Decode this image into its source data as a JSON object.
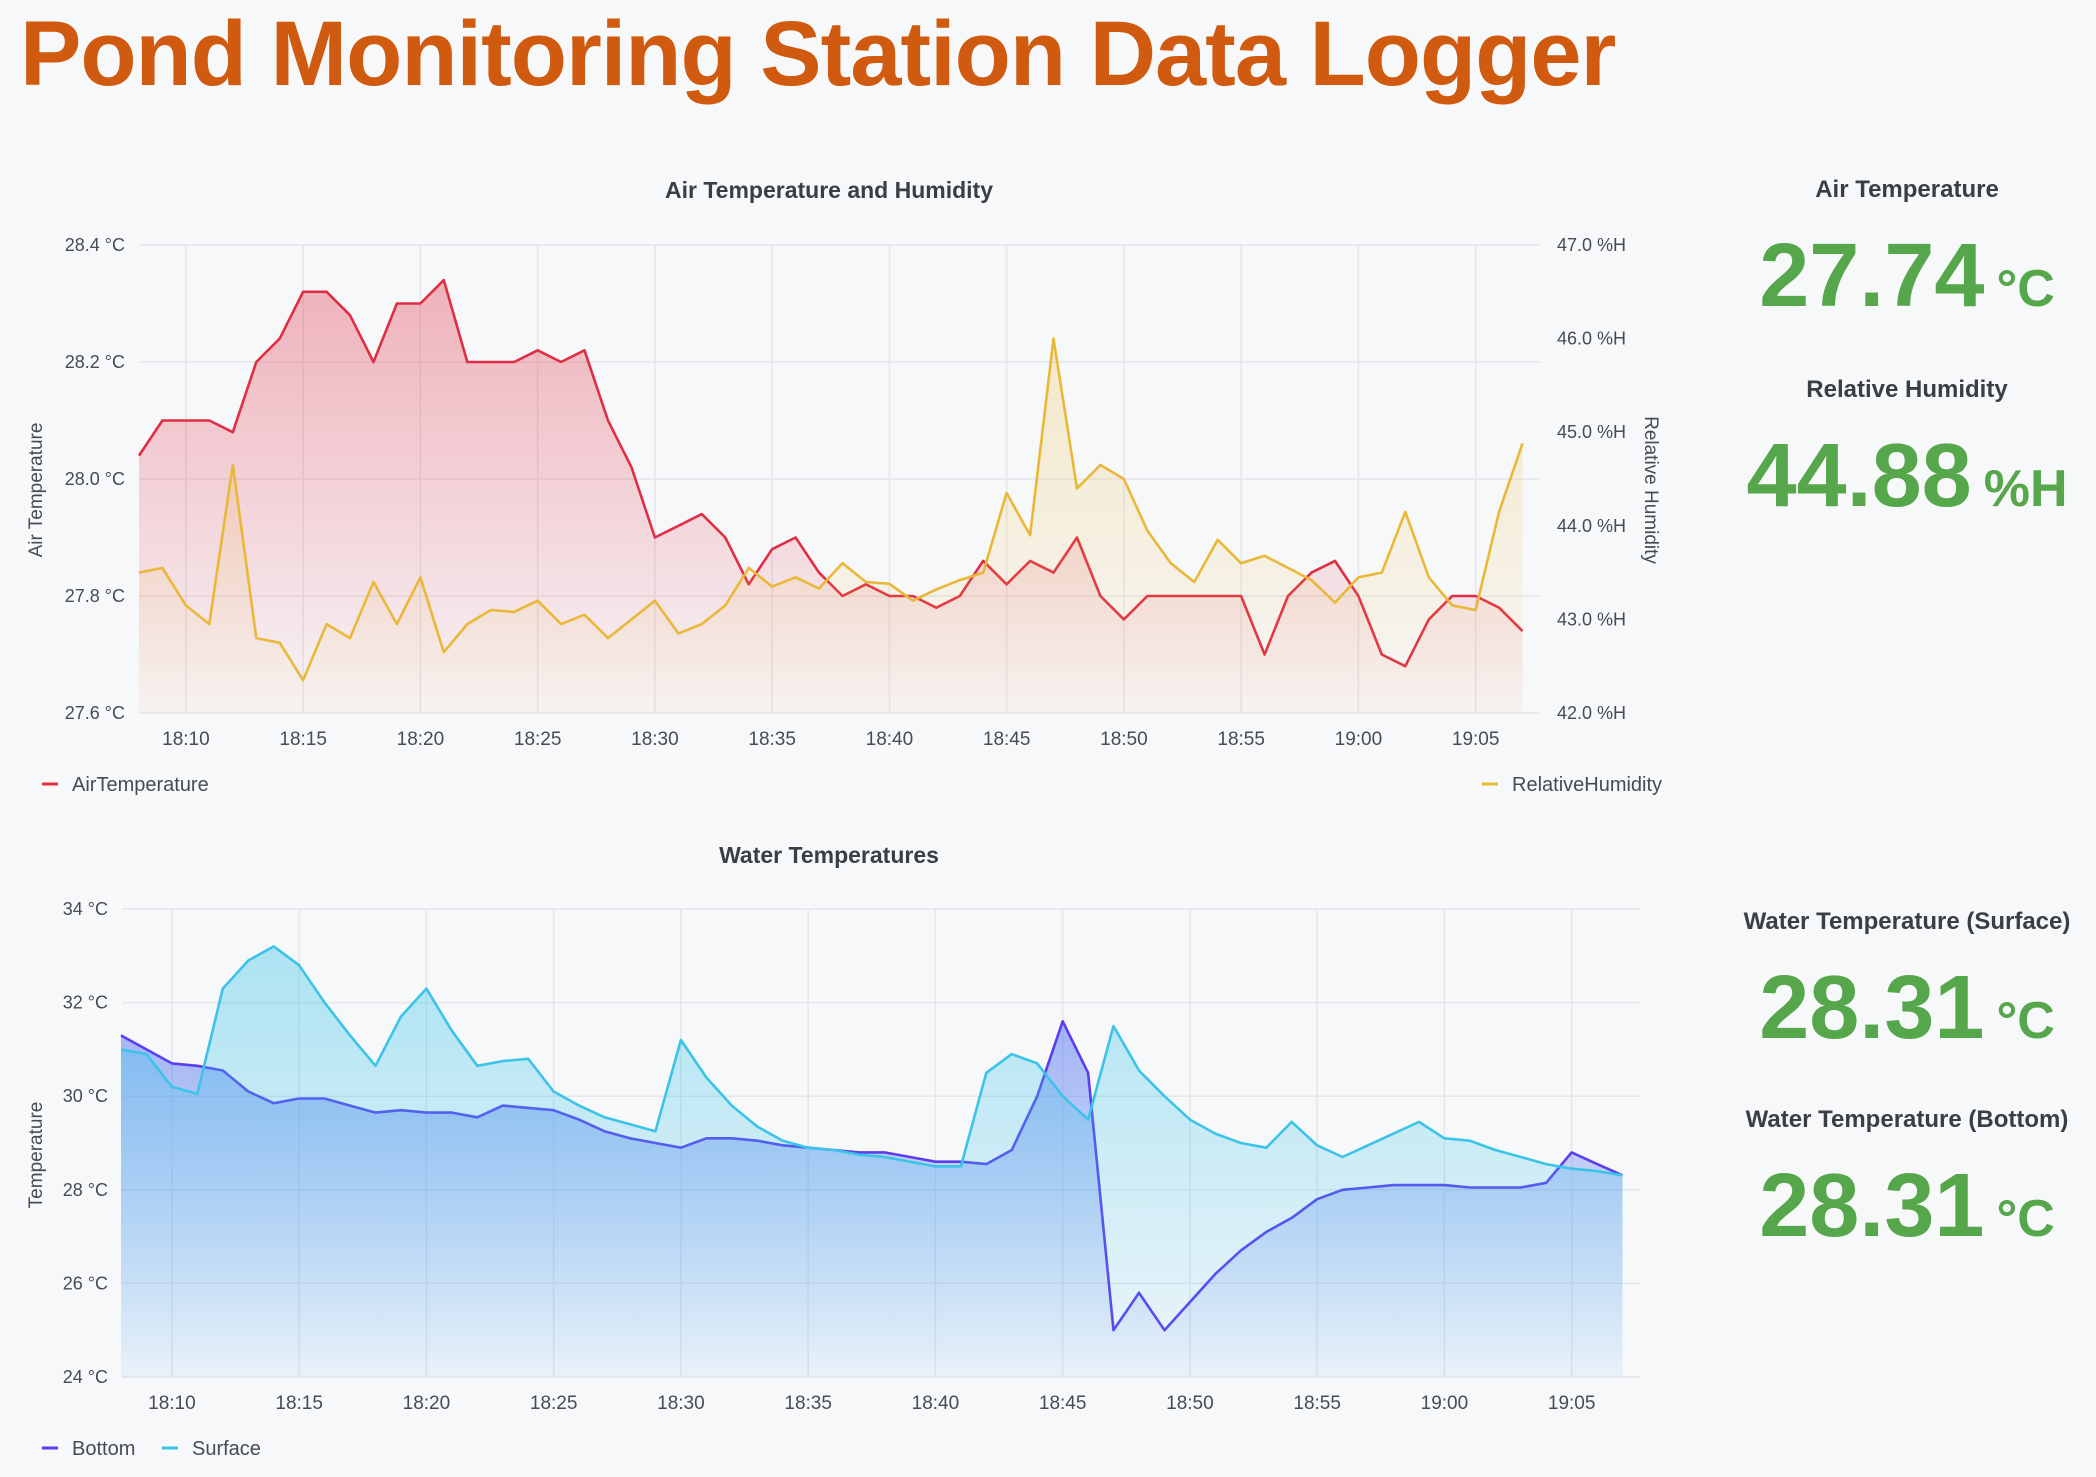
{
  "title": "Pond Monitoring Station Data Logger",
  "colors": {
    "air": "#e02f44",
    "humidity": "#eab839",
    "bottom": "#5a3ef0",
    "surface": "#3cc3e8",
    "stat": "#56a64b"
  },
  "stats": [
    {
      "title": "Air Temperature",
      "value": "27.74",
      "unit": "°C"
    },
    {
      "title": "Relative Humidity",
      "value": "44.88",
      "unit": "%H"
    },
    {
      "title": "Water Temperature (Surface)",
      "value": "28.31",
      "unit": "°C"
    },
    {
      "title": "Water Temperature (Bottom)",
      "value": "28.31",
      "unit": "°C"
    }
  ],
  "chart_data": [
    {
      "type": "line",
      "title": "Air Temperature and Humidity",
      "ylabel": "Air Temperature",
      "y2label": "Relative Humidity",
      "ylim": [
        27.6,
        28.4
      ],
      "y2lim": [
        42.0,
        47.0
      ],
      "yticks": [
        "28.4 °C",
        "28.2 °C",
        "28.0 °C",
        "27.8 °C",
        "27.6 °C"
      ],
      "y2ticks": [
        "47.0 %H",
        "46.0 %H",
        "45.0 %H",
        "44.0 %H",
        "43.0 %H",
        "42.0 %H"
      ],
      "xticks": [
        "18:10",
        "18:15",
        "18:20",
        "18:25",
        "18:30",
        "18:35",
        "18:40",
        "18:45",
        "18:50",
        "18:55",
        "19:00",
        "19:05"
      ],
      "x_start": "18:08",
      "x_step_min": 1,
      "grid": true,
      "series": [
        {
          "name": "AirTemperature",
          "axis": "left",
          "values": [
            28.04,
            28.1,
            28.1,
            28.1,
            28.08,
            28.2,
            28.24,
            28.32,
            28.32,
            28.28,
            28.2,
            28.3,
            28.3,
            28.34,
            28.2,
            28.2,
            28.2,
            28.22,
            28.2,
            28.22,
            28.1,
            28.02,
            27.9,
            27.92,
            27.94,
            27.9,
            27.82,
            27.88,
            27.9,
            27.84,
            27.8,
            27.82,
            27.8,
            27.8,
            27.78,
            27.8,
            27.86,
            27.82,
            27.86,
            27.84,
            27.9,
            27.8,
            27.76,
            27.8,
            27.8,
            27.8,
            27.8,
            27.8,
            27.7,
            27.8,
            27.84,
            27.86,
            27.8,
            27.7,
            27.68,
            27.76,
            27.8,
            27.8,
            27.78,
            27.74
          ]
        },
        {
          "name": "RelativeHumidity",
          "axis": "right",
          "values": [
            43.5,
            43.55,
            43.15,
            42.95,
            44.65,
            42.8,
            42.75,
            42.35,
            42.95,
            42.8,
            43.4,
            42.95,
            43.45,
            42.65,
            42.95,
            43.1,
            43.08,
            43.2,
            42.95,
            43.05,
            42.8,
            43.0,
            43.2,
            42.85,
            42.95,
            43.15,
            43.55,
            43.35,
            43.45,
            43.33,
            43.6,
            43.4,
            43.38,
            43.2,
            43.32,
            43.42,
            43.5,
            44.35,
            43.9,
            46.0,
            44.4,
            44.65,
            44.5,
            43.95,
            43.6,
            43.4,
            43.85,
            43.6,
            43.68,
            43.55,
            43.42,
            43.18,
            43.45,
            43.5,
            44.15,
            43.45,
            43.15,
            43.1,
            44.15,
            44.88
          ]
        }
      ]
    },
    {
      "type": "line",
      "title": "Water Temperatures",
      "ylabel": "Temperature",
      "ylim": [
        24,
        34
      ],
      "yticks": [
        "34 °C",
        "32 °C",
        "30 °C",
        "28 °C",
        "26 °C",
        "24 °C"
      ],
      "xticks": [
        "18:10",
        "18:15",
        "18:20",
        "18:25",
        "18:30",
        "18:35",
        "18:40",
        "18:45",
        "18:50",
        "18:55",
        "19:00",
        "19:05"
      ],
      "x_start": "18:08",
      "x_step_min": 1,
      "grid": true,
      "series": [
        {
          "name": "Bottom",
          "values": [
            31.3,
            31.0,
            30.7,
            30.65,
            30.55,
            30.1,
            29.85,
            29.95,
            29.95,
            29.8,
            29.65,
            29.7,
            29.65,
            29.65,
            29.55,
            29.8,
            29.75,
            29.7,
            29.5,
            29.25,
            29.1,
            29.0,
            28.9,
            29.1,
            29.1,
            29.05,
            28.95,
            28.9,
            28.85,
            28.8,
            28.8,
            28.7,
            28.6,
            28.6,
            28.55,
            28.85,
            30.0,
            31.6,
            30.5,
            25.0,
            25.8,
            25.0,
            25.6,
            26.2,
            26.7,
            27.1,
            27.4,
            27.8,
            28.0,
            28.05,
            28.1,
            28.1,
            28.1,
            28.05,
            28.05,
            28.05,
            28.15,
            28.8,
            28.55,
            28.31
          ]
        },
        {
          "name": "Surface",
          "values": [
            31.0,
            30.9,
            30.2,
            30.05,
            32.3,
            32.9,
            33.2,
            32.8,
            32.0,
            31.3,
            30.65,
            31.7,
            32.3,
            31.4,
            30.65,
            30.75,
            30.8,
            30.1,
            29.8,
            29.55,
            29.4,
            29.25,
            31.2,
            30.4,
            29.8,
            29.35,
            29.05,
            28.9,
            28.85,
            28.75,
            28.7,
            28.6,
            28.5,
            28.5,
            30.5,
            30.9,
            30.7,
            30.0,
            29.5,
            31.5,
            30.55,
            30.0,
            29.5,
            29.2,
            29.0,
            28.9,
            29.45,
            28.95,
            28.7,
            28.95,
            29.2,
            29.45,
            29.1,
            29.05,
            28.85,
            28.7,
            28.55,
            28.45,
            28.4,
            28.31
          ]
        }
      ]
    }
  ]
}
